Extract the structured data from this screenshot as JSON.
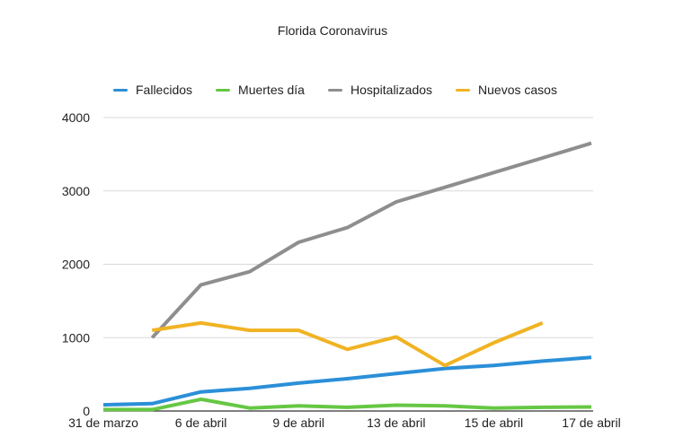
{
  "chart_data": {
    "type": "line",
    "title": "Florida Coronavirus",
    "xlabel": "",
    "ylabel": "",
    "ylim": [
      0,
      4000
    ],
    "yticks": [
      "0",
      "1000",
      "2000",
      "3000",
      "4000"
    ],
    "ytick_values": [
      0,
      1000,
      2000,
      3000,
      4000
    ],
    "grid": true,
    "legend_position": "top",
    "x": [
      "31 de marzo",
      "",
      "6 de abril",
      "",
      "9 de abril",
      "",
      "13 de abril",
      "",
      "15 de abril",
      "",
      "17 de abril"
    ],
    "xtick_labels": [
      {
        "index": 0,
        "label": "31 de marzo"
      },
      {
        "index": 2,
        "label": "6 de abril"
      },
      {
        "index": 4,
        "label": "9 de abril"
      },
      {
        "index": 6,
        "label": "13 de abril"
      },
      {
        "index": 8,
        "label": "15 de abril"
      },
      {
        "index": 10,
        "label": "17 de abril"
      }
    ],
    "series": [
      {
        "name": "Fallecidos",
        "color": "#2b8fd8",
        "values": [
          85,
          100,
          260,
          310,
          380,
          440,
          510,
          580,
          620,
          680,
          730
        ]
      },
      {
        "name": "Muertes día",
        "color": "#66c744",
        "values": [
          20,
          20,
          160,
          40,
          70,
          50,
          80,
          70,
          40,
          50,
          55
        ]
      },
      {
        "name": "Hospitalizados",
        "color": "#8e8e8e",
        "values": [
          null,
          1000,
          1720,
          1900,
          2300,
          2500,
          2850,
          3050,
          3250,
          3450,
          3650
        ]
      },
      {
        "name": "Nuevos casos",
        "color": "#f0b323",
        "values": [
          null,
          1100,
          1200,
          1100,
          1100,
          840,
          1010,
          620,
          930,
          1200,
          null
        ]
      }
    ]
  }
}
